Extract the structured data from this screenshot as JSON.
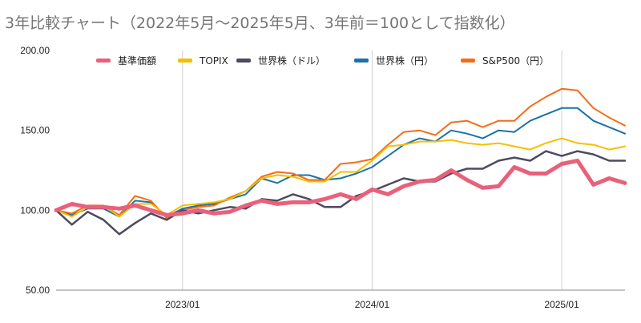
{
  "chart_data": {
    "type": "line",
    "title": "3年比較チャート（2022年5月〜2025年5月、3年前＝100として指数化）",
    "xlabel": "",
    "ylabel": "",
    "ylim": [
      50,
      200
    ],
    "yticks": [
      "50.00",
      "100.00",
      "150.00",
      "200.00"
    ],
    "x_ticks": [
      "2023/01",
      "2024/01",
      "2025/01"
    ],
    "x": [
      "2022/05",
      "2022/06",
      "2022/07",
      "2022/08",
      "2022/09",
      "2022/10",
      "2022/11",
      "2022/12",
      "2023/01",
      "2023/02",
      "2023/03",
      "2023/04",
      "2023/05",
      "2023/06",
      "2023/07",
      "2023/08",
      "2023/09",
      "2023/10",
      "2023/11",
      "2023/12",
      "2024/01",
      "2024/02",
      "2024/03",
      "2024/04",
      "2024/05",
      "2024/06",
      "2024/07",
      "2024/08",
      "2024/09",
      "2024/10",
      "2024/11",
      "2024/12",
      "2025/01",
      "2025/02",
      "2025/03",
      "2025/04",
      "2025/05"
    ],
    "grid": "vertical lines at year ticks, horizontal line at 50",
    "legend_position": "top",
    "series": [
      {
        "name": "基準価額",
        "color": "#e8617b",
        "width": 5,
        "values": [
          100,
          104,
          102,
          102,
          101,
          103,
          100,
          97,
          98,
          100,
          98,
          99,
          103,
          106,
          104,
          105,
          105,
          107,
          110,
          107,
          113,
          110,
          115,
          118,
          119,
          125,
          119,
          114,
          115,
          127,
          123,
          123,
          129,
          131,
          116,
          120,
          117
        ]
      },
      {
        "name": "TOPIX",
        "color": "#f6bf00",
        "width": 2,
        "values": [
          100,
          96,
          102,
          103,
          96,
          104,
          104,
          97,
          103,
          104,
          105,
          107,
          112,
          120,
          122,
          121,
          118,
          118,
          124,
          124,
          131,
          140,
          141,
          143,
          143,
          144,
          142,
          141,
          142,
          140,
          138,
          142,
          145,
          142,
          141,
          138,
          140
        ]
      },
      {
        "name": "世界株（ドル）",
        "color": "#4f4a60",
        "width": 2.5,
        "values": [
          100,
          91,
          99,
          94,
          85,
          92,
          98,
          94,
          100,
          98,
          100,
          102,
          101,
          107,
          106,
          110,
          107,
          102,
          102,
          109,
          112,
          116,
          120,
          118,
          118,
          123,
          126,
          126,
          131,
          133,
          131,
          137,
          134,
          137,
          135,
          131,
          131
        ]
      },
      {
        "name": "世界株（円）",
        "color": "#1c72a8",
        "width": 2,
        "values": [
          100,
          97,
          101,
          101,
          96,
          106,
          105,
          96,
          101,
          103,
          104,
          107,
          110,
          120,
          117,
          122,
          122,
          119,
          120,
          123,
          127,
          134,
          141,
          145,
          143,
          150,
          148,
          145,
          150,
          149,
          156,
          160,
          164,
          164,
          156,
          152,
          148
        ]
      },
      {
        "name": "S&P500（円）",
        "color": "#f46d18",
        "width": 2,
        "values": [
          100,
          98,
          103,
          103,
          97,
          109,
          106,
          95,
          100,
          102,
          103,
          108,
          112,
          121,
          124,
          123,
          119,
          119,
          129,
          130,
          132,
          141,
          149,
          150,
          147,
          155,
          156,
          152,
          156,
          156,
          165,
          171,
          176,
          175,
          164,
          158,
          153
        ]
      }
    ],
    "draw_order": [
      3,
      4,
      1,
      2,
      0
    ]
  }
}
